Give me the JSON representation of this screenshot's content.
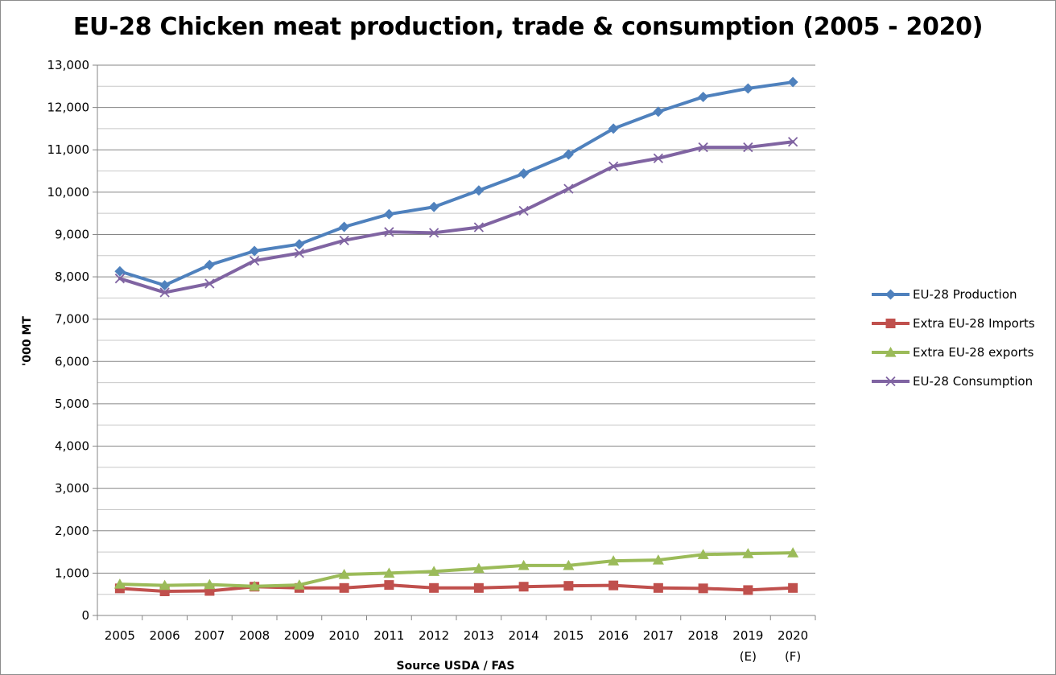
{
  "chart_data": {
    "type": "line",
    "title": "EU-28 Chicken meat production, trade & consumption (2005 - 2020)",
    "xlabel": "Source USDA / FAS",
    "ylabel": "'000 MT",
    "categories": [
      "2005",
      "2006",
      "2007",
      "2008",
      "2009",
      "2010",
      "2011",
      "2012",
      "2013",
      "2014",
      "2015",
      "2016",
      "2017",
      "2018",
      "2019",
      "2020"
    ],
    "category_sublabels": [
      "",
      "",
      "",
      "",
      "",
      "",
      "",
      "",
      "",
      "",
      "",
      "",
      "",
      "",
      "(E)",
      "(F)"
    ],
    "ylim": [
      0,
      13000
    ],
    "yticks": [
      0,
      1000,
      2000,
      3000,
      4000,
      5000,
      6000,
      7000,
      8000,
      9000,
      10000,
      11000,
      12000,
      13000
    ],
    "ytick_labels": [
      "0",
      "1,000",
      "2,000",
      "3,000",
      "4,000",
      "5,000",
      "6,000",
      "7,000",
      "8,000",
      "9,000",
      "10,000",
      "11,000",
      "12,000",
      "13,000"
    ],
    "grid": true,
    "legend_position": "right",
    "series": [
      {
        "name": "EU-28 Production",
        "color": "#4f81bd",
        "marker": "diamond",
        "values": [
          8130,
          7800,
          8280,
          8610,
          8770,
          9180,
          9480,
          9650,
          10040,
          10440,
          10890,
          11500,
          11900,
          12250,
          12450,
          12600
        ]
      },
      {
        "name": "Extra EU-28 Imports",
        "color": "#c0504d",
        "marker": "square",
        "values": [
          640,
          570,
          580,
          680,
          650,
          650,
          720,
          650,
          650,
          680,
          700,
          710,
          650,
          640,
          600,
          650
        ]
      },
      {
        "name": "Extra EU-28 exports",
        "color": "#9bbb59",
        "marker": "triangle",
        "values": [
          740,
          710,
          730,
          690,
          720,
          970,
          1000,
          1040,
          1110,
          1180,
          1180,
          1290,
          1310,
          1440,
          1460,
          1480
        ]
      },
      {
        "name": "EU-28 Consumption",
        "color": "#8064a2",
        "marker": "x",
        "values": [
          7960,
          7630,
          7840,
          8380,
          8560,
          8860,
          9060,
          9040,
          9170,
          9560,
          10080,
          10610,
          10800,
          11060,
          11060,
          11190
        ]
      }
    ]
  }
}
